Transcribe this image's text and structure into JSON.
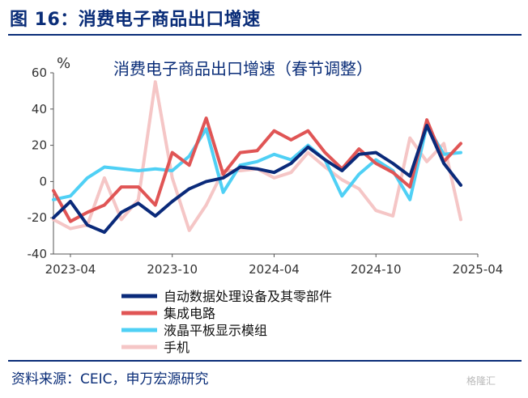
{
  "figure": {
    "title": "图 16：消费电子商品出口增速",
    "source": "资料来源：CEIC，申万宏源研究",
    "watermark": "格隆汇"
  },
  "chart_data": {
    "type": "line",
    "title": "消费电子商品出口增速（春节调整）",
    "ylabel": "%",
    "xlabel": "",
    "ylim": [
      -40,
      60
    ],
    "yticks": [
      -40,
      -20,
      0,
      20,
      40,
      60
    ],
    "xtick_labels": [
      "2023-04",
      "2023-10",
      "2024-04",
      "2024-10",
      "2025-04"
    ],
    "x": [
      "2023-03",
      "2023-04",
      "2023-05",
      "2023-06",
      "2023-07",
      "2023-08",
      "2023-09",
      "2023-10",
      "2023-11",
      "2023-12",
      "2024-01",
      "2024-02",
      "2024-03",
      "2024-04",
      "2024-05",
      "2024-06",
      "2024-07",
      "2024-08",
      "2024-09",
      "2024-10",
      "2024-11",
      "2024-12",
      "2025-01",
      "2025-02",
      "2025-03",
      "2025-04"
    ],
    "grid": false,
    "legend_position": "bottom",
    "series": [
      {
        "name": "自动数据处理设备及其零部件",
        "color": "#0a2a7a",
        "values": [
          -20,
          -11,
          -24,
          -28,
          -17,
          -12,
          -19,
          -11,
          -4,
          0,
          2,
          8,
          7,
          5,
          10,
          19,
          12,
          6,
          15,
          16,
          10,
          3,
          31,
          10,
          -2,
          null
        ]
      },
      {
        "name": "集成电路",
        "color": "#e05555",
        "values": [
          -5,
          -22,
          -17,
          -13,
          -3,
          -3,
          -13,
          16,
          9,
          35,
          4,
          16,
          17,
          28,
          23,
          28,
          16,
          7,
          18,
          10,
          5,
          -3,
          34,
          11,
          21,
          null
        ]
      },
      {
        "name": "液晶平板显示模组",
        "color": "#4fd0f5",
        "values": [
          -10,
          -8,
          2,
          8,
          7,
          6,
          7,
          6,
          14,
          29,
          -6,
          9,
          11,
          15,
          12,
          20,
          12,
          -8,
          4,
          12,
          6,
          -10,
          31,
          15,
          16,
          null
        ]
      },
      {
        "name": "手机",
        "color": "#f5c6c6",
        "values": [
          -21,
          -26,
          -24,
          2,
          -21,
          -10,
          55,
          2,
          -27,
          -13,
          6,
          6,
          7,
          2,
          5,
          16,
          8,
          1,
          -4,
          -16,
          -19,
          24,
          11,
          21,
          -21,
          null
        ]
      }
    ]
  }
}
